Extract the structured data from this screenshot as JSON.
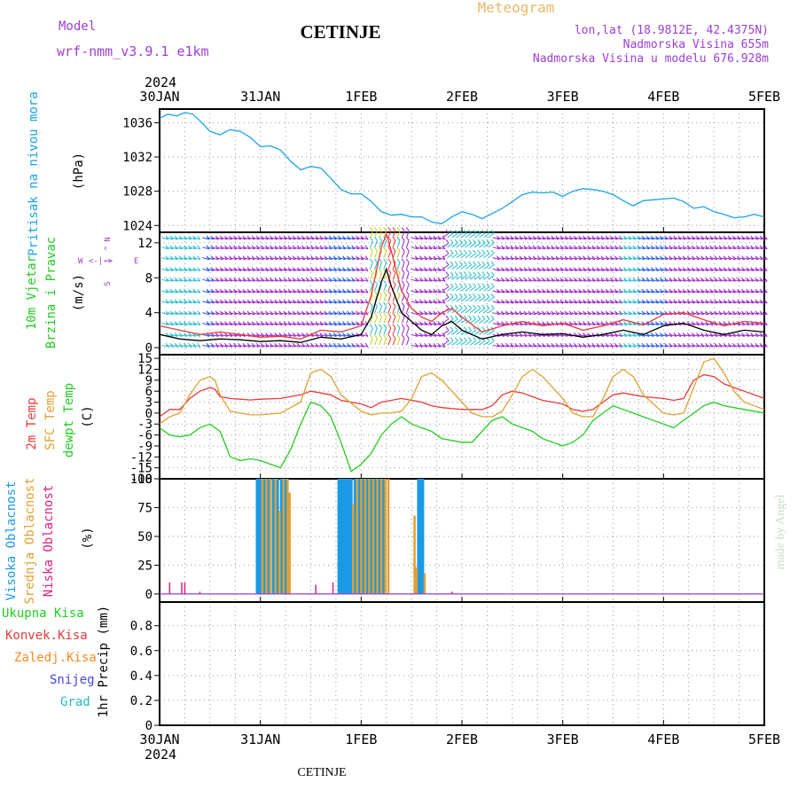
{
  "header": {
    "model_label": "Model",
    "model_name": "wrf-nmm_v3.9.1 e1km",
    "station": "CETINJE",
    "meteogram_label": "Meteogram",
    "lonlat": "lon,lat (18.9812E, 42.4375N)",
    "elevation": "Nadmorska Visina 655m",
    "model_elevation": "Nadmorska Visina u modelu 676.928m",
    "year": "2024",
    "footer_station": "CETINJE",
    "credit": "made by Angel"
  },
  "colors": {
    "pressure": "#1aa3e6",
    "temp_2m": "#e83a3a",
    "temp_sfc": "#e0a030",
    "dewpoint": "#22cc22",
    "cloud_high": "#1a9ae6",
    "cloud_mid": "#e0a030",
    "cloud_low": "#e0207a",
    "wind_speed": "#000000",
    "wind_gust": "#e83a3a",
    "barb_calm": "#9922cc",
    "barb_med": "#2255ee",
    "barb_strong": "#22bbcc",
    "barb_gale": "#ee3333",
    "precip_total": "#22cc22",
    "precip_conv": "#e83a3a",
    "precip_frozen": "#ff8822",
    "precip_snow": "#4444dd",
    "precip_hail": "#22bbbb",
    "credit": "#c8dcc8"
  },
  "chart_data": [
    {
      "type": "line",
      "panel": "pressure",
      "ylabel": [
        "Pritisak na nivou mora",
        "(hPa)"
      ],
      "x_ticks": [
        "30JAN",
        "31JAN",
        "1FEB",
        "2FEB",
        "3FEB",
        "4FEB",
        "5FEB"
      ],
      "yticks": [
        1024,
        1028,
        1032,
        1036
      ],
      "ylim": [
        1023.2,
        1037.6
      ],
      "grid": true,
      "series": [
        {
          "x": [
            0,
            0.08,
            0.17,
            0.25,
            0.33,
            0.42,
            0.5,
            0.6,
            0.7,
            0.8,
            0.9,
            1.0,
            1.1,
            1.2,
            1.3,
            1.4,
            1.5,
            1.6,
            1.7,
            1.8,
            1.9,
            2.0,
            2.1,
            2.2,
            2.3,
            2.4,
            2.5,
            2.6,
            2.7,
            2.8,
            2.9,
            3.0,
            3.1,
            3.2,
            3.3,
            3.4,
            3.5,
            3.6,
            3.7,
            3.8,
            3.9,
            4.0,
            4.1,
            4.2,
            4.3,
            4.4,
            4.5,
            4.6,
            4.7,
            4.8,
            4.9,
            5.0,
            5.1,
            5.2,
            5.3,
            5.4,
            5.5,
            5.6,
            5.7,
            5.8,
            5.9,
            6.0
          ],
          "y": [
            1036.5,
            1037.0,
            1036.8,
            1037.2,
            1037.0,
            1036.0,
            1035.0,
            1034.6,
            1035.2,
            1035.0,
            1034.3,
            1033.2,
            1033.3,
            1032.8,
            1031.5,
            1030.5,
            1030.9,
            1030.7,
            1029.5,
            1028.2,
            1027.7,
            1027.7,
            1026.8,
            1025.6,
            1025.2,
            1025.3,
            1025.0,
            1025.0,
            1024.4,
            1024.2,
            1025.0,
            1025.6,
            1025.3,
            1024.8,
            1025.4,
            1026.0,
            1026.8,
            1027.6,
            1027.9,
            1027.8,
            1027.9,
            1027.4,
            1028.0,
            1028.3,
            1028.2,
            1028.0,
            1027.6,
            1026.9,
            1026.3,
            1026.9,
            1027.0,
            1027.1,
            1027.2,
            1026.8,
            1026.0,
            1026.2,
            1025.6,
            1025.3,
            1024.9,
            1025.0,
            1025.3,
            1025.0
          ]
        }
      ]
    },
    {
      "type": "line",
      "panel": "wind",
      "ylabel": [
        "10m Vjetar",
        "Brzina i Pravac",
        "(m/s)"
      ],
      "compass": [
        "W",
        "<-|->",
        "E",
        "N",
        "^",
        "|",
        "S"
      ],
      "yticks": [
        0,
        4,
        8,
        12
      ],
      "ylim": [
        -0.8,
        13.2
      ],
      "grid": true,
      "series": [
        {
          "name": "speed",
          "x": [
            0,
            0.2,
            0.4,
            0.6,
            0.8,
            1.0,
            1.2,
            1.4,
            1.6,
            1.8,
            2.0,
            2.1,
            2.2,
            2.25,
            2.3,
            2.4,
            2.5,
            2.6,
            2.7,
            2.8,
            2.9,
            3.0,
            3.2,
            3.4,
            3.6,
            3.8,
            4.0,
            4.2,
            4.4,
            4.6,
            4.8,
            5.0,
            5.2,
            5.4,
            5.6,
            5.8,
            6.0
          ],
          "y": [
            1.5,
            1.0,
            0.8,
            1.0,
            0.9,
            0.7,
            0.8,
            0.6,
            1.2,
            1.0,
            1.5,
            3.5,
            7.5,
            9.0,
            7.0,
            4.0,
            3.0,
            2.0,
            1.5,
            2.5,
            3.0,
            2.0,
            1.0,
            1.5,
            1.8,
            1.5,
            1.6,
            1.2,
            1.5,
            2.0,
            1.5,
            2.5,
            2.8,
            2.0,
            1.5,
            2.0,
            1.8
          ]
        },
        {
          "name": "gust",
          "x": [
            0,
            0.2,
            0.4,
            0.6,
            0.8,
            1.0,
            1.2,
            1.4,
            1.6,
            1.8,
            2.0,
            2.1,
            2.2,
            2.25,
            2.3,
            2.4,
            2.5,
            2.6,
            2.7,
            2.8,
            2.9,
            3.0,
            3.2,
            3.4,
            3.6,
            3.8,
            4.0,
            4.2,
            4.4,
            4.6,
            4.8,
            5.0,
            5.2,
            5.4,
            5.6,
            5.8,
            6.0
          ],
          "y": [
            2.5,
            2.0,
            1.5,
            1.8,
            1.5,
            1.2,
            1.3,
            1.0,
            2.0,
            1.8,
            2.5,
            6.0,
            11.5,
            13.0,
            11.0,
            6.5,
            4.5,
            3.5,
            3.0,
            4.0,
            4.5,
            3.5,
            1.8,
            2.5,
            3.0,
            2.5,
            2.8,
            2.0,
            2.5,
            3.2,
            2.6,
            3.8,
            4.0,
            3.2,
            2.5,
            3.0,
            2.8
          ]
        }
      ]
    },
    {
      "type": "line",
      "panel": "temperature",
      "ylabel": [
        "2m Temp",
        "SFC Temp",
        "dewpt Temp",
        "(C)"
      ],
      "yticks": [
        -18,
        -15,
        -12,
        -9,
        -6,
        -3,
        0,
        3,
        6,
        9,
        12,
        15
      ],
      "ylim": [
        -18,
        16
      ],
      "grid": true,
      "series": [
        {
          "name": "2m Temp",
          "x": [
            0,
            0.1,
            0.2,
            0.3,
            0.4,
            0.5,
            0.55,
            0.6,
            0.7,
            0.8,
            0.9,
            1.0,
            1.2,
            1.4,
            1.5,
            1.6,
            1.7,
            1.8,
            2.0,
            2.1,
            2.2,
            2.3,
            2.4,
            2.5,
            2.6,
            2.7,
            2.8,
            3.0,
            3.1,
            3.2,
            3.3,
            3.4,
            3.5,
            3.6,
            3.7,
            3.8,
            4.0,
            4.1,
            4.2,
            4.3,
            4.4,
            4.5,
            4.6,
            4.7,
            4.8,
            5.0,
            5.1,
            5.2,
            5.3,
            5.4,
            5.5,
            5.6,
            5.7,
            5.8,
            6.0
          ],
          "y": [
            -1,
            1,
            1,
            4,
            6,
            7,
            6.5,
            4.5,
            4,
            3.8,
            3.6,
            3.8,
            4,
            5,
            6,
            5.5,
            5,
            3.5,
            2.5,
            1.5,
            3,
            3.5,
            4,
            3.5,
            3,
            2,
            1.5,
            1,
            1,
            1,
            2,
            5,
            6,
            5.5,
            4.5,
            3.5,
            2.5,
            1,
            0.5,
            1,
            3,
            5,
            5.5,
            5,
            4.5,
            4,
            3.5,
            4,
            9,
            10.5,
            10,
            8,
            7,
            6,
            4
          ]
        },
        {
          "name": "SFC Temp",
          "x": [
            0,
            0.1,
            0.2,
            0.3,
            0.4,
            0.5,
            0.55,
            0.6,
            0.7,
            0.8,
            0.9,
            1.0,
            1.2,
            1.4,
            1.5,
            1.6,
            1.7,
            1.8,
            2.0,
            2.1,
            2.2,
            2.3,
            2.4,
            2.5,
            2.6,
            2.7,
            2.8,
            3.0,
            3.1,
            3.2,
            3.3,
            3.4,
            3.5,
            3.6,
            3.7,
            3.8,
            4.0,
            4.1,
            4.2,
            4.3,
            4.4,
            4.5,
            4.6,
            4.7,
            4.8,
            5.0,
            5.1,
            5.2,
            5.3,
            5.4,
            5.5,
            5.6,
            5.7,
            5.8,
            6.0
          ],
          "y": [
            -3,
            -1,
            0,
            5,
            9,
            10,
            9,
            5,
            0.5,
            0,
            -0.5,
            -0.5,
            0,
            3,
            11,
            12,
            10,
            5,
            0.5,
            -0.5,
            0,
            0,
            0.5,
            4,
            10,
            11,
            9,
            3,
            0,
            -1,
            -1,
            0.5,
            5,
            10,
            12,
            10,
            4,
            0,
            -1,
            -1,
            4,
            10,
            12,
            10,
            5,
            0,
            -0.5,
            0,
            7,
            14,
            15,
            11,
            6,
            3,
            1
          ]
        },
        {
          "name": "dewpt Temp",
          "x": [
            0,
            0.1,
            0.2,
            0.3,
            0.4,
            0.5,
            0.6,
            0.7,
            0.8,
            0.9,
            1.0,
            1.1,
            1.2,
            1.3,
            1.4,
            1.5,
            1.6,
            1.7,
            1.8,
            1.9,
            2.0,
            2.1,
            2.2,
            2.3,
            2.4,
            2.5,
            2.6,
            2.7,
            2.8,
            3.0,
            3.1,
            3.2,
            3.3,
            3.4,
            3.5,
            3.6,
            3.7,
            3.8,
            4.0,
            4.1,
            4.2,
            4.3,
            4.4,
            4.5,
            4.6,
            4.7,
            4.8,
            5.0,
            5.1,
            5.2,
            5.3,
            5.4,
            5.5,
            5.6,
            5.8,
            6.0
          ],
          "y": [
            -4,
            -6,
            -6.5,
            -6,
            -4,
            -3,
            -5,
            -12,
            -13,
            -12.5,
            -13,
            -14,
            -15,
            -10,
            -3,
            3,
            2,
            -1,
            -8,
            -16,
            -14,
            -11,
            -6,
            -3,
            -1,
            -3,
            -4,
            -5,
            -7,
            -8,
            -8,
            -5,
            -2,
            -1,
            -3,
            -4,
            -5,
            -7,
            -9,
            -8,
            -6,
            -2,
            0,
            2,
            1,
            0,
            -1,
            -3,
            -4,
            -2,
            0,
            2,
            3,
            2,
            1,
            0
          ]
        }
      ]
    },
    {
      "type": "bar",
      "panel": "clouds",
      "ylabel": [
        "Visoka Oblacnost",
        "Srednja Oblacnost",
        "Niska Oblacnost",
        "(%)"
      ],
      "yticks": [
        0,
        25,
        50,
        75,
        100
      ],
      "ylim": [
        -7,
        100
      ],
      "grid": true,
      "series": [
        {
          "name": "Visoka Oblacnost",
          "x": [
            0.97,
            0.99,
            1.01,
            1.03,
            1.05,
            1.07,
            1.09,
            1.13,
            1.17,
            1.21,
            1.25,
            1.78,
            1.8,
            1.82,
            1.84,
            1.86,
            1.88,
            1.9,
            1.94,
            1.98,
            2.02,
            2.06,
            2.1,
            2.14,
            2.18,
            2.22,
            2.55,
            2.57,
            2.59,
            2.61
          ],
          "y": [
            100,
            100,
            100,
            100,
            100,
            100,
            100,
            100,
            100,
            100,
            100,
            100,
            100,
            100,
            100,
            100,
            100,
            100,
            100,
            100,
            100,
            100,
            100,
            100,
            100,
            100,
            22,
            100,
            100,
            100
          ]
        },
        {
          "name": "Srednja Oblacnost",
          "x": [
            1.02,
            1.06,
            1.1,
            1.15,
            1.19,
            1.23,
            1.27,
            1.29,
            1.92,
            1.96,
            2.0,
            2.04,
            2.08,
            2.12,
            2.16,
            2.2,
            2.24,
            2.27,
            2.53,
            2.55,
            2.63
          ],
          "y": [
            100,
            100,
            100,
            100,
            72,
            100,
            100,
            88,
            78,
            100,
            100,
            100,
            100,
            100,
            100,
            100,
            100,
            100,
            68,
            23,
            18
          ]
        },
        {
          "name": "Niska Oblacnost",
          "x": [
            0.1,
            0.22,
            0.25,
            0.4,
            2.9,
            1.55,
            1.72
          ],
          "y": [
            10,
            10,
            10,
            2,
            2,
            8,
            10
          ]
        }
      ]
    },
    {
      "type": "bar",
      "panel": "precip",
      "ylabel": [
        "Ukupna Kisa",
        "Konvek.Kisa",
        "Zaledj.Kisa",
        "Snijeg",
        "Grad",
        "1hr Precip (mm)"
      ],
      "yticks": [
        0,
        0.2,
        0.4,
        0.6,
        0.8
      ],
      "ytick_labels": [
        "0",
        "0.2",
        "0.4",
        "0.6",
        "0.8"
      ],
      "ylim": [
        0,
        0.99
      ],
      "grid": true,
      "series": []
    }
  ],
  "xaxis": {
    "ticks": [
      "30JAN",
      "31JAN",
      "1FEB",
      "2FEB",
      "3FEB",
      "4FEB",
      "5FEB"
    ],
    "year": "2024"
  }
}
